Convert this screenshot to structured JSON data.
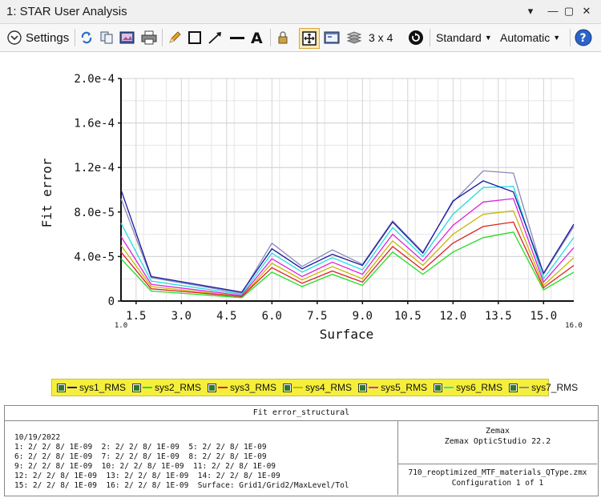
{
  "window": {
    "title": "1: STAR User Analysis",
    "controls": [
      "chevron-down-icon",
      "close-icon",
      "maximize-icon",
      "close-x-icon"
    ]
  },
  "toolbar": {
    "settings_label": "Settings",
    "layout_label": "3 x 4",
    "style_label": "Standard",
    "scale_label": "Automatic"
  },
  "chart_data": {
    "type": "line",
    "xlabel": "Surface",
    "ylabel": "Fit error",
    "xlim": [
      1.0,
      16.0
    ],
    "ylim": [
      0,
      0.0002
    ],
    "x_ticks": [
      "1.5",
      "3.0",
      "4.5",
      "6.0",
      "7.5",
      "9.0",
      "10.5",
      "12.0",
      "13.5",
      "15.0"
    ],
    "x_tick_values": [
      1.5,
      3.0,
      4.5,
      6.0,
      7.5,
      9.0,
      10.5,
      12.0,
      13.5,
      15.0
    ],
    "x_end_labels": [
      "1.0",
      "16.0"
    ],
    "y_ticks": [
      "0",
      "4.0e-5",
      "8.0e-5",
      "1.2e-4",
      "1.6e-4",
      "2.0e-4"
    ],
    "y_tick_values": [
      0,
      4e-05,
      8e-05,
      0.00012,
      0.00016,
      0.0002
    ],
    "grid": true,
    "legend_position": "bottom",
    "x": [
      1,
      2,
      5,
      6,
      7,
      8,
      9,
      10,
      11,
      12,
      13,
      14,
      15,
      16
    ],
    "series": [
      {
        "name": "sys1_RMS",
        "color": "#1a1aa0",
        "values": [
          0.0001,
          2.2e-05,
          8e-06,
          4.7e-05,
          2.9e-05,
          4.2e-05,
          3.2e-05,
          7.1e-05,
          4.3e-05,
          9e-05,
          0.000108,
          9.8e-05,
          2.5e-05,
          6.9e-05
        ]
      },
      {
        "name": "sys2_RMS",
        "color": "#22dd22",
        "values": [
          3.8e-05,
          9e-06,
          3e-06,
          2.6e-05,
          1.3e-05,
          2.4e-05,
          1.4e-05,
          4.4e-05,
          2.4e-05,
          4.4e-05,
          5.7e-05,
          6.2e-05,
          1e-05,
          2.6e-05
        ]
      },
      {
        "name": "sys3_RMS",
        "color": "#dd2222",
        "values": [
          4.4e-05,
          1.1e-05,
          4e-06,
          3e-05,
          1.6e-05,
          2.7e-05,
          1.7e-05,
          4.9e-05,
          2.8e-05,
          5.2e-05,
          6.7e-05,
          7.1e-05,
          1.2e-05,
          3.2e-05
        ]
      },
      {
        "name": "sys4_RMS",
        "color": "#c8b400",
        "values": [
          5e-05,
          1.3e-05,
          4e-06,
          3.4e-05,
          1.9e-05,
          3.1e-05,
          2e-05,
          5.4e-05,
          3.2e-05,
          6e-05,
          7.8e-05,
          8.1e-05,
          1.4e-05,
          3.9e-05
        ]
      },
      {
        "name": "sys5_RMS",
        "color": "#dd22dd",
        "values": [
          5.8e-05,
          1.5e-05,
          5e-06,
          3.8e-05,
          2.2e-05,
          3.5e-05,
          2.4e-05,
          6e-05,
          3.6e-05,
          6.8e-05,
          8.9e-05,
          9.2e-05,
          1.7e-05,
          4.8e-05
        ]
      },
      {
        "name": "sys6_RMS",
        "color": "#22dddd",
        "values": [
          7e-05,
          1.8e-05,
          6e-06,
          4.3e-05,
          2.6e-05,
          3.9e-05,
          2.8e-05,
          6.6e-05,
          4e-05,
          7.8e-05,
          0.000102,
          0.000103,
          2e-05,
          5.7e-05
        ]
      },
      {
        "name": "sys7_RMS",
        "color": "#8888bb",
        "values": [
          9.2e-05,
          2.1e-05,
          7e-06,
          5.2e-05,
          3.1e-05,
          4.6e-05,
          3.3e-05,
          7.2e-05,
          4.4e-05,
          8.9e-05,
          0.000117,
          0.000115,
          2.4e-05,
          6.7e-05
        ]
      }
    ]
  },
  "info": {
    "title": "Fit error_structural",
    "date": "10/19/2022",
    "lines": [
      "1: 2/ 2/ 8/ 1E-09  2: 2/ 2/ 8/ 1E-09  5: 2/ 2/ 8/ 1E-09",
      "6: 2/ 2/ 8/ 1E-09  7: 2/ 2/ 8/ 1E-09  8: 2/ 2/ 8/ 1E-09",
      "9: 2/ 2/ 8/ 1E-09  10: 2/ 2/ 8/ 1E-09  11: 2/ 2/ 8/ 1E-09",
      "12: 2/ 2/ 8/ 1E-09  13: 2/ 2/ 8/ 1E-09  14: 2/ 2/ 8/ 1E-09",
      "15: 2/ 2/ 8/ 1E-09  16: 2/ 2/ 8/ 1E-09  Surface: Grid1/Grid2/MaxLevel/Tol"
    ],
    "company": "Zemax",
    "product": "Zemax OpticStudio 22.2",
    "filename": "710_reoptimized_MTF_materials_QType.zmx",
    "configuration": "Configuration 1 of 1"
  }
}
